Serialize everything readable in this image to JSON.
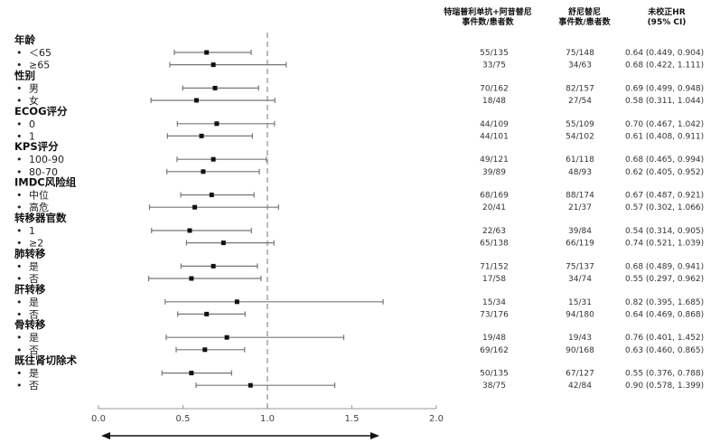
{
  "headers": {
    "arm1": [
      "特瑞普利单抗+阿昔替尼",
      "事件数/患者数"
    ],
    "arm2": [
      "舒尼替尼",
      "事件数/患者数"
    ],
    "hr": [
      "未校正HR",
      "(95% CI)"
    ]
  },
  "colors": {
    "ci_line": "#777777",
    "point": "#111111",
    "ref_line": "#aaaaaa",
    "axis": "#999999"
  },
  "chart_data": {
    "type": "forest",
    "xlim": [
      0,
      2.0
    ],
    "xticks": [
      0,
      0.5,
      1.0,
      1.5,
      2.0
    ],
    "tick_labels": [
      "0.0",
      "0.5",
      "1.0",
      "1.5",
      "2.0"
    ],
    "reference_line": 1.0,
    "groups": [
      {
        "label": "年龄",
        "rows": [
          {
            "label": "＜65",
            "hr": 0.64,
            "lo": 0.449,
            "hi": 0.904,
            "arm1": "55/135",
            "arm2": "75/148",
            "hr_text": "0.64 (0.449, 0.904)"
          },
          {
            "label": "≥65",
            "hr": 0.68,
            "lo": 0.422,
            "hi": 1.111,
            "arm1": "33/75",
            "arm2": "34/63",
            "hr_text": "0.68 (0.422, 1.111)"
          }
        ]
      },
      {
        "label": "性别",
        "rows": [
          {
            "label": "男",
            "hr": 0.69,
            "lo": 0.499,
            "hi": 0.948,
            "arm1": "70/162",
            "arm2": "82/157",
            "hr_text": "0.69 (0.499, 0.948)"
          },
          {
            "label": "女",
            "hr": 0.58,
            "lo": 0.311,
            "hi": 1.044,
            "arm1": "18/48",
            "arm2": "27/54",
            "hr_text": "0.58 (0.311, 1.044)"
          }
        ]
      },
      {
        "label": "ECOG评分",
        "rows": [
          {
            "label": "0",
            "hr": 0.7,
            "lo": 0.467,
            "hi": 1.042,
            "arm1": "44/109",
            "arm2": "55/109",
            "hr_text": "0.70 (0.467, 1.042)"
          },
          {
            "label": "1",
            "hr": 0.61,
            "lo": 0.408,
            "hi": 0.911,
            "arm1": "44/101",
            "arm2": "54/102",
            "hr_text": "0.61 (0.408, 0.911)"
          }
        ]
      },
      {
        "label": "KPS评分",
        "rows": [
          {
            "label": "100-90",
            "hr": 0.68,
            "lo": 0.465,
            "hi": 0.994,
            "arm1": "49/121",
            "arm2": "61/118",
            "hr_text": "0.68 (0.465, 0.994)"
          },
          {
            "label": "80-70",
            "hr": 0.62,
            "lo": 0.405,
            "hi": 0.952,
            "arm1": "39/89",
            "arm2": "48/93",
            "hr_text": "0.62 (0.405, 0.952)"
          }
        ]
      },
      {
        "label": "IMDC风险组",
        "rows": [
          {
            "label": "中位",
            "hr": 0.67,
            "lo": 0.487,
            "hi": 0.921,
            "arm1": "68/169",
            "arm2": "88/174",
            "hr_text": "0.67 (0.487, 0.921)"
          },
          {
            "label": "高危",
            "hr": 0.57,
            "lo": 0.302,
            "hi": 1.066,
            "arm1": "20/41",
            "arm2": "21/37",
            "hr_text": "0.57 (0.302, 1.066)"
          }
        ]
      },
      {
        "label": "转移器官数",
        "rows": [
          {
            "label": "1",
            "hr": 0.54,
            "lo": 0.314,
            "hi": 0.905,
            "arm1": "22/63",
            "arm2": "39/84",
            "hr_text": "0.54 (0.314, 0.905)"
          },
          {
            "label": "≥2",
            "hr": 0.74,
            "lo": 0.521,
            "hi": 1.039,
            "arm1": "65/138",
            "arm2": "66/119",
            "hr_text": "0.74 (0.521, 1.039)"
          }
        ]
      },
      {
        "label": "肺转移",
        "rows": [
          {
            "label": "是",
            "hr": 0.68,
            "lo": 0.489,
            "hi": 0.941,
            "arm1": "71/152",
            "arm2": "75/137",
            "hr_text": "0.68 (0.489, 0.941)"
          },
          {
            "label": "否",
            "hr": 0.55,
            "lo": 0.297,
            "hi": 0.962,
            "arm1": "17/58",
            "arm2": "34/74",
            "hr_text": "0.55 (0.297, 0.962)"
          }
        ]
      },
      {
        "label": "肝转移",
        "rows": [
          {
            "label": "是",
            "hr": 0.82,
            "lo": 0.395,
            "hi": 1.685,
            "arm1": "15/34",
            "arm2": "15/31",
            "hr_text": "0.82 (0.395, 1.685)"
          },
          {
            "label": "否",
            "hr": 0.64,
            "lo": 0.469,
            "hi": 0.868,
            "arm1": "73/176",
            "arm2": "94/180",
            "hr_text": "0.64 (0.469, 0.868)"
          }
        ]
      },
      {
        "label": "骨转移",
        "rows": [
          {
            "label": "是",
            "hr": 0.76,
            "lo": 0.401,
            "hi": 1.452,
            "arm1": "19/48",
            "arm2": "19/43",
            "hr_text": "0.76 (0.401, 1.452)"
          },
          {
            "label": "否",
            "hr": 0.63,
            "lo": 0.46,
            "hi": 0.865,
            "arm1": "69/162",
            "arm2": "90/168",
            "hr_text": "0.63 (0.460, 0.865)"
          }
        ]
      },
      {
        "label": "既往肾切除术",
        "rows": [
          {
            "label": "是",
            "hr": 0.55,
            "lo": 0.376,
            "hi": 0.788,
            "arm1": "50/135",
            "arm2": "67/127",
            "hr_text": "0.55 (0.376, 0.788)"
          },
          {
            "label": "否",
            "hr": 0.9,
            "lo": 0.578,
            "hi": 1.399,
            "arm1": "38/75",
            "arm2": "42/84",
            "hr_text": "0.90 (0.578, 1.399)"
          }
        ]
      }
    ]
  }
}
